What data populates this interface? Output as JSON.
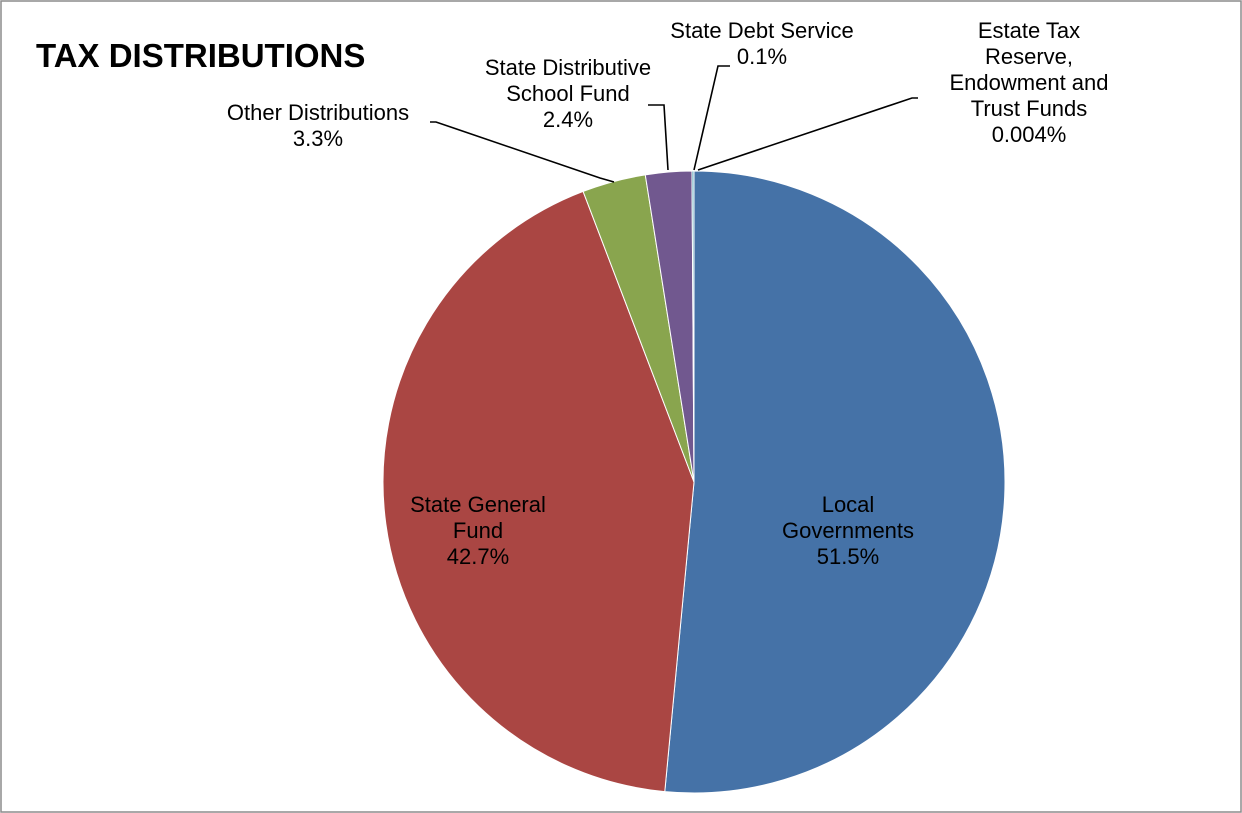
{
  "chart_data": {
    "type": "pie",
    "title": "TAX DISTRIBUTIONS",
    "slices": [
      {
        "name": "Local Governments",
        "label_lines": [
          "Local",
          "Governments"
        ],
        "value": 51.5,
        "display": "51.5%",
        "color": "#4572A7"
      },
      {
        "name": "State General Fund",
        "label_lines": [
          "State General",
          "Fund"
        ],
        "value": 42.7,
        "display": "42.7%",
        "color": "#AA4643"
      },
      {
        "name": "Other Distributions",
        "label_lines": [
          "Other Distributions"
        ],
        "value": 3.3,
        "display": "3.3%",
        "color": "#89A54E"
      },
      {
        "name": "State Distributive School Fund",
        "label_lines": [
          "State Distributive",
          "School Fund"
        ],
        "value": 2.4,
        "display": "2.4%",
        "color": "#71588F"
      },
      {
        "name": "State Debt Service",
        "label_lines": [
          "State Debt Service"
        ],
        "value": 0.1,
        "display": "0.1%",
        "color": "#4198AF"
      },
      {
        "name": "Estate Tax Reserve, Endowment and Trust Funds",
        "label_lines": [
          "Estate Tax",
          "Reserve,",
          "Endowment and",
          "Trust Funds"
        ],
        "value": 0.004,
        "display": "0.004%",
        "color": "#DB843D"
      }
    ],
    "start_angle": "12 o'clock",
    "direction": "clockwise",
    "legend": "none"
  }
}
